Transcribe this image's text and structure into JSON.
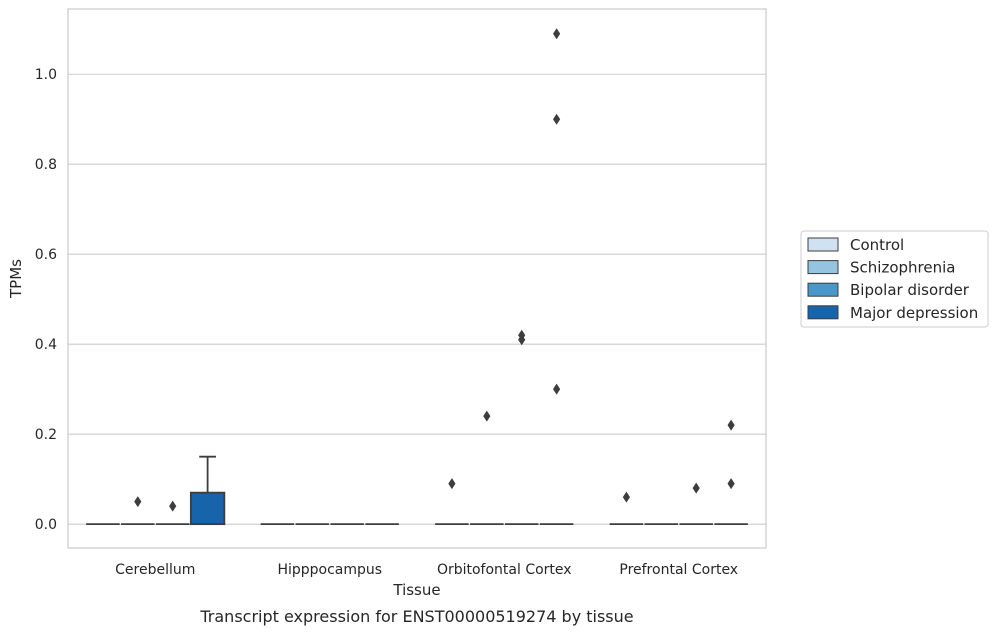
{
  "chart_data": {
    "type": "box",
    "title": "",
    "caption": "Transcript expression for ENST00000519274 by tissue",
    "xlabel": "Tissue",
    "ylabel": "TPMs",
    "ylim": [
      -0.053,
      1.145
    ],
    "yticks": [
      0.0,
      0.2,
      0.4,
      0.6,
      0.8,
      1.0
    ],
    "ytick_labels": [
      "0.0",
      "0.2",
      "0.4",
      "0.6",
      "0.8",
      "1.0"
    ],
    "grid": "horizontal",
    "legend_position": "right",
    "categories": [
      "Cerebellum",
      "Hipppocampus",
      "Orbitofontal Cortex",
      "Prefrontal Cortex"
    ],
    "series": [
      {
        "name": "Control",
        "color": "#d0e1f2",
        "boxes": [
          {
            "q1": 0,
            "median": 0,
            "q3": 0,
            "whislo": 0,
            "whishi": 0,
            "fliers": []
          },
          {
            "q1": 0,
            "median": 0,
            "q3": 0,
            "whislo": 0,
            "whishi": 0,
            "fliers": []
          },
          {
            "q1": 0,
            "median": 0,
            "q3": 0,
            "whislo": 0,
            "whishi": 0,
            "fliers": [
              0.09
            ]
          },
          {
            "q1": 0,
            "median": 0,
            "q3": 0,
            "whislo": 0,
            "whishi": 0,
            "fliers": [
              0.06
            ]
          }
        ]
      },
      {
        "name": "Schizophrenia",
        "color": "#94c4df",
        "boxes": [
          {
            "q1": 0,
            "median": 0,
            "q3": 0,
            "whislo": 0,
            "whishi": 0,
            "fliers": [
              0.05
            ]
          },
          {
            "q1": 0,
            "median": 0,
            "q3": 0,
            "whislo": 0,
            "whishi": 0,
            "fliers": []
          },
          {
            "q1": 0,
            "median": 0,
            "q3": 0,
            "whislo": 0,
            "whishi": 0,
            "fliers": [
              0.24
            ]
          },
          {
            "q1": 0,
            "median": 0,
            "q3": 0,
            "whislo": 0,
            "whishi": 0,
            "fliers": []
          }
        ]
      },
      {
        "name": "Bipolar disorder",
        "color": "#4a98c9",
        "boxes": [
          {
            "q1": 0,
            "median": 0,
            "q3": 0,
            "whislo": 0,
            "whishi": 0,
            "fliers": [
              0.04
            ]
          },
          {
            "q1": 0,
            "median": 0,
            "q3": 0,
            "whislo": 0,
            "whishi": 0,
            "fliers": []
          },
          {
            "q1": 0,
            "median": 0,
            "q3": 0,
            "whislo": 0,
            "whishi": 0,
            "fliers": [
              0.41,
              0.42
            ]
          },
          {
            "q1": 0,
            "median": 0,
            "q3": 0,
            "whislo": 0,
            "whishi": 0,
            "fliers": [
              0.08
            ]
          }
        ]
      },
      {
        "name": "Major depression",
        "color": "#1764ab",
        "boxes": [
          {
            "q1": 0,
            "median": 0,
            "q3": 0.07,
            "whislo": 0,
            "whishi": 0.15,
            "fliers": []
          },
          {
            "q1": 0,
            "median": 0,
            "q3": 0,
            "whislo": 0,
            "whishi": 0,
            "fliers": []
          },
          {
            "q1": 0,
            "median": 0,
            "q3": 0,
            "whislo": 0,
            "whishi": 0,
            "fliers": [
              0.3,
              0.9,
              1.09
            ]
          },
          {
            "q1": 0,
            "median": 0,
            "q3": 0,
            "whislo": 0,
            "whishi": 0,
            "fliers": [
              0.09,
              0.22
            ]
          }
        ]
      }
    ]
  }
}
